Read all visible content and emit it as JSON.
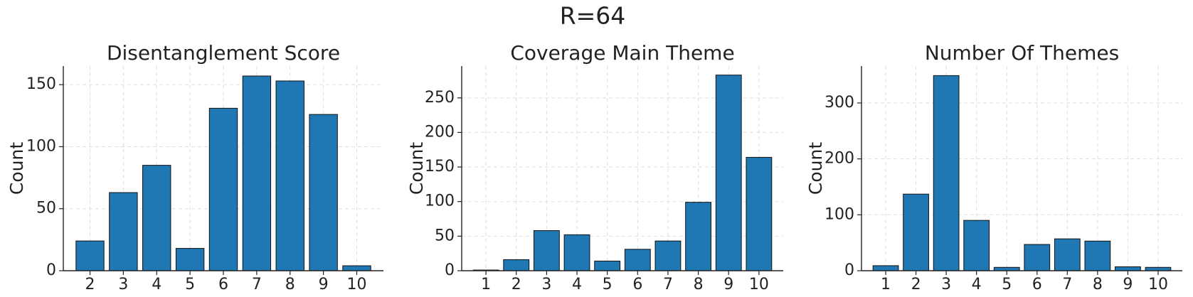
{
  "title": "R=64",
  "chart_data": [
    {
      "type": "bar",
      "title": "Disentanglement Score",
      "ylabel": "Count",
      "color": "#1f77b4",
      "grid": true,
      "categories": [
        "2",
        "3",
        "4",
        "5",
        "6",
        "7",
        "8",
        "9",
        "10"
      ],
      "values": [
        24,
        63,
        85,
        18,
        131,
        157,
        153,
        126,
        4
      ],
      "ylim": [
        0,
        165
      ],
      "yticks": [
        0,
        50,
        100,
        150
      ]
    },
    {
      "type": "bar",
      "title": "Coverage Main Theme",
      "ylabel": "Count",
      "color": "#1f77b4",
      "grid": true,
      "categories": [
        "1",
        "2",
        "3",
        "4",
        "5",
        "6",
        "7",
        "8",
        "9",
        "10"
      ],
      "values": [
        1,
        16,
        58,
        52,
        14,
        31,
        43,
        99,
        283,
        164
      ],
      "ylim": [
        0,
        296
      ],
      "yticks": [
        0,
        50,
        100,
        150,
        200,
        250
      ]
    },
    {
      "type": "bar",
      "title": "Number Of Themes",
      "ylabel": "Count",
      "color": "#1f77b4",
      "grid": true,
      "categories": [
        "1",
        "2",
        "3",
        "4",
        "5",
        "6",
        "7",
        "8",
        "9",
        "10"
      ],
      "values": [
        9,
        137,
        349,
        90,
        6,
        47,
        57,
        53,
        7,
        6
      ],
      "ylim": [
        0,
        366
      ],
      "yticks": [
        0,
        100,
        200,
        300
      ]
    }
  ]
}
